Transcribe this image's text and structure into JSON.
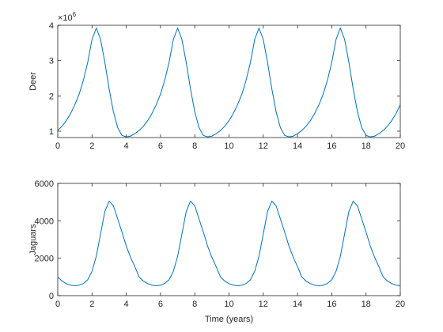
{
  "chart_data": [
    {
      "type": "line",
      "ylabel": "Deer",
      "y_exponent_base": "×10",
      "y_exponent_power": "6",
      "x": [
        0,
        0.25,
        0.5,
        0.75,
        1,
        1.25,
        1.5,
        1.75,
        2,
        2.25,
        2.5,
        2.75,
        3,
        3.25,
        3.5,
        3.75,
        4,
        4.25,
        4.5,
        4.75,
        5,
        5.25,
        5.5,
        5.75,
        6,
        6.25,
        6.5,
        6.75,
        7,
        7.25,
        7.5,
        7.75,
        8,
        8.25,
        8.5,
        8.75,
        9,
        9.25,
        9.5,
        9.75,
        10,
        10.25,
        10.5,
        10.75,
        11,
        11.25,
        11.5,
        11.75,
        12,
        12.25,
        12.5,
        12.75,
        13,
        13.25,
        13.5,
        13.75,
        14,
        14.25,
        14.5,
        14.75,
        15,
        15.25,
        15.5,
        15.75,
        16,
        16.25,
        16.5,
        16.75,
        17,
        17.25,
        17.5,
        17.75,
        18,
        18.25,
        18.5,
        18.75,
        19,
        19.25,
        19.5,
        19.75,
        20
      ],
      "series": [
        {
          "color": "#0072bd",
          "values": [
            1020000,
            1140000,
            1300000,
            1500000,
            1750000,
            2050000,
            2450000,
            2950000,
            3600000,
            3920000,
            3600000,
            2950000,
            2200000,
            1550000,
            1100000,
            880000,
            840000,
            860000,
            930000,
            1020000,
            1140000,
            1300000,
            1500000,
            1750000,
            2050000,
            2450000,
            2950000,
            3600000,
            3920000,
            3600000,
            2950000,
            2200000,
            1550000,
            1100000,
            880000,
            840000,
            860000,
            930000,
            1020000,
            1140000,
            1300000,
            1500000,
            1750000,
            2050000,
            2450000,
            2950000,
            3600000,
            3920000,
            3600000,
            2950000,
            2200000,
            1550000,
            1100000,
            880000,
            840000,
            860000,
            930000,
            1020000,
            1140000,
            1300000,
            1500000,
            1750000,
            2050000,
            2450000,
            2950000,
            3600000,
            3920000,
            3600000,
            2950000,
            2200000,
            1550000,
            1100000,
            880000,
            840000,
            860000,
            930000,
            1020000,
            1140000,
            1300000,
            1500000,
            1750000
          ]
        }
      ],
      "xlim": [
        0,
        20
      ],
      "xticks": [
        0,
        2,
        4,
        6,
        8,
        10,
        12,
        14,
        16,
        18,
        20
      ],
      "ylim": [
        820000,
        4000000
      ],
      "yticks": [
        {
          "value": 1000000,
          "label": "1"
        },
        {
          "value": 2000000,
          "label": "2"
        },
        {
          "value": 3000000,
          "label": "3"
        },
        {
          "value": 4000000,
          "label": "4"
        }
      ],
      "grid": false
    },
    {
      "type": "line",
      "ylabel": "Jaguars",
      "xlabel": "Time (years)",
      "x": [
        0,
        0.25,
        0.5,
        0.75,
        1,
        1.25,
        1.5,
        1.75,
        2,
        2.25,
        2.5,
        2.75,
        3,
        3.25,
        3.5,
        3.75,
        4,
        4.25,
        4.5,
        4.75,
        5,
        5.25,
        5.5,
        5.75,
        6,
        6.25,
        6.5,
        6.75,
        7,
        7.25,
        7.5,
        7.75,
        8,
        8.25,
        8.5,
        8.75,
        9,
        9.25,
        9.5,
        9.75,
        10,
        10.25,
        10.5,
        10.75,
        11,
        11.25,
        11.5,
        11.75,
        12,
        12.25,
        12.5,
        12.75,
        13,
        13.25,
        13.5,
        13.75,
        14,
        14.25,
        14.5,
        14.75,
        15,
        15.25,
        15.5,
        15.75,
        16,
        16.25,
        16.5,
        16.75,
        17,
        17.25,
        17.5,
        17.75,
        18,
        18.25,
        18.5,
        18.75,
        19,
        19.25,
        19.5,
        19.75,
        20
      ],
      "series": [
        {
          "color": "#0072bd",
          "values": [
            1000,
            780,
            640,
            560,
            530,
            560,
            650,
            850,
            1300,
            2100,
            3300,
            4500,
            5050,
            4800,
            4100,
            3400,
            2650,
            2050,
            1550,
            1000,
            780,
            640,
            560,
            530,
            560,
            650,
            850,
            1300,
            2100,
            3300,
            4500,
            5050,
            4800,
            4100,
            3400,
            2650,
            2050,
            1550,
            1000,
            780,
            640,
            560,
            530,
            560,
            650,
            850,
            1300,
            2100,
            3300,
            4500,
            5050,
            4800,
            4100,
            3400,
            2650,
            2050,
            1550,
            1000,
            780,
            640,
            560,
            530,
            560,
            650,
            850,
            1300,
            2100,
            3300,
            4500,
            5050,
            4800,
            4100,
            3400,
            2650,
            2050,
            1550,
            1000,
            780,
            640,
            560,
            530
          ]
        }
      ],
      "xlim": [
        0,
        20
      ],
      "xticks": [
        0,
        2,
        4,
        6,
        8,
        10,
        12,
        14,
        16,
        18,
        20
      ],
      "ylim": [
        0,
        6000
      ],
      "yticks": [
        0,
        2000,
        4000,
        6000
      ],
      "grid": false
    }
  ]
}
